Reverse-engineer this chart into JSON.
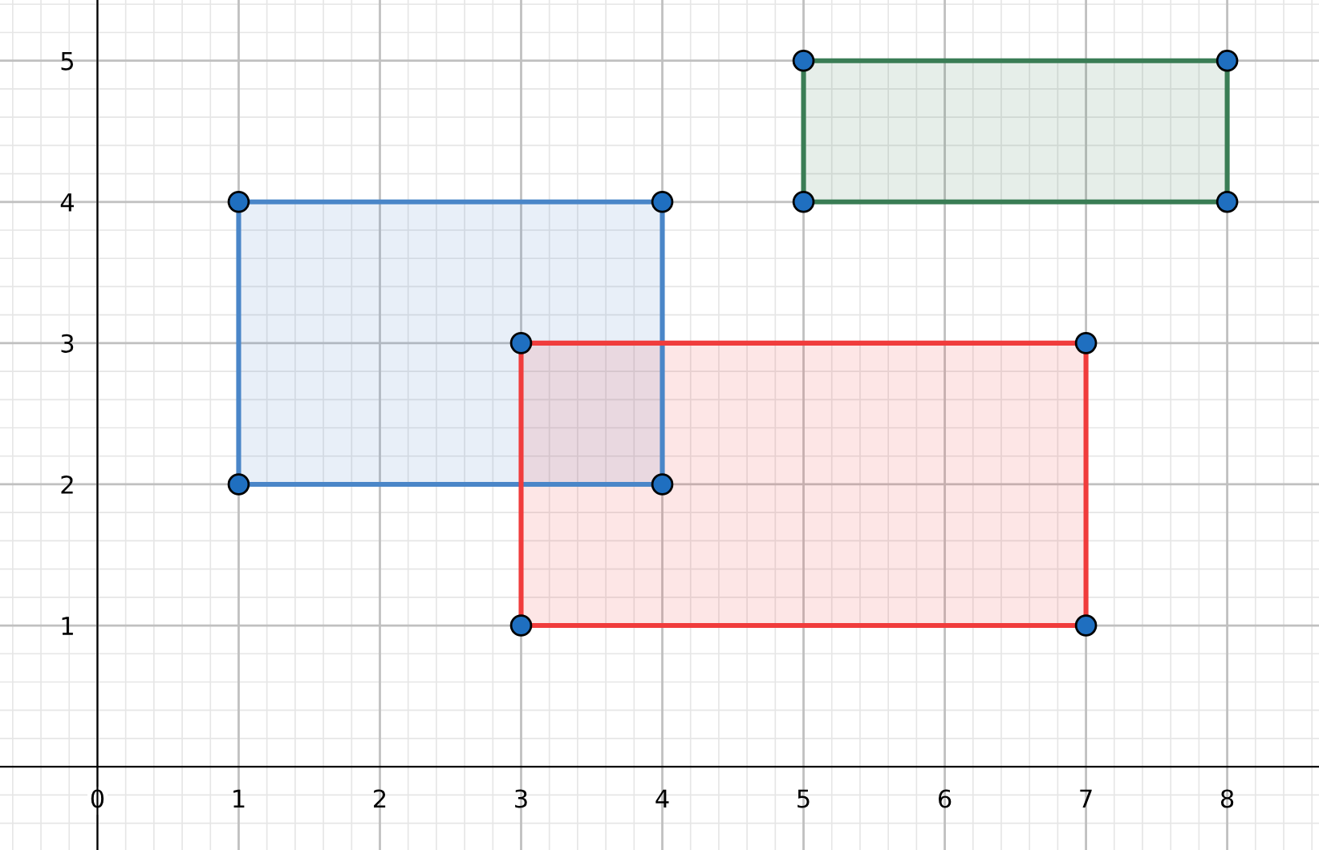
{
  "chart_data": {
    "type": "area",
    "xlim": [
      -0.69,
      8.65
    ],
    "ylim": [
      -0.59,
      5.43
    ],
    "xticks": [
      0,
      1,
      2,
      3,
      4,
      5,
      6,
      7,
      8
    ],
    "yticks": [
      1,
      2,
      3,
      4,
      5
    ],
    "grid": true,
    "line_style": "solid",
    "series": [
      {
        "color": "#4a86c8",
        "x": [
          1,
          4,
          4,
          1,
          1
        ],
        "values": [
          2,
          2,
          4,
          4,
          2
        ]
      },
      {
        "color": "#f03c3c",
        "x": [
          3,
          7,
          7,
          3,
          3
        ],
        "values": [
          1,
          1,
          3,
          3,
          1
        ]
      },
      {
        "color": "#3a7d55",
        "x": [
          5,
          8,
          8,
          5,
          5
        ],
        "values": [
          4,
          4,
          5,
          5,
          4
        ]
      },
      {
        "type": "scatter",
        "color": "#1f6fc0",
        "marker": "circle",
        "x": [
          1,
          4,
          4,
          1,
          3,
          7,
          7,
          3,
          5,
          8,
          8,
          5
        ],
        "values": [
          2,
          2,
          4,
          4,
          1,
          1,
          3,
          3,
          4,
          4,
          5,
          5
        ]
      }
    ]
  }
}
